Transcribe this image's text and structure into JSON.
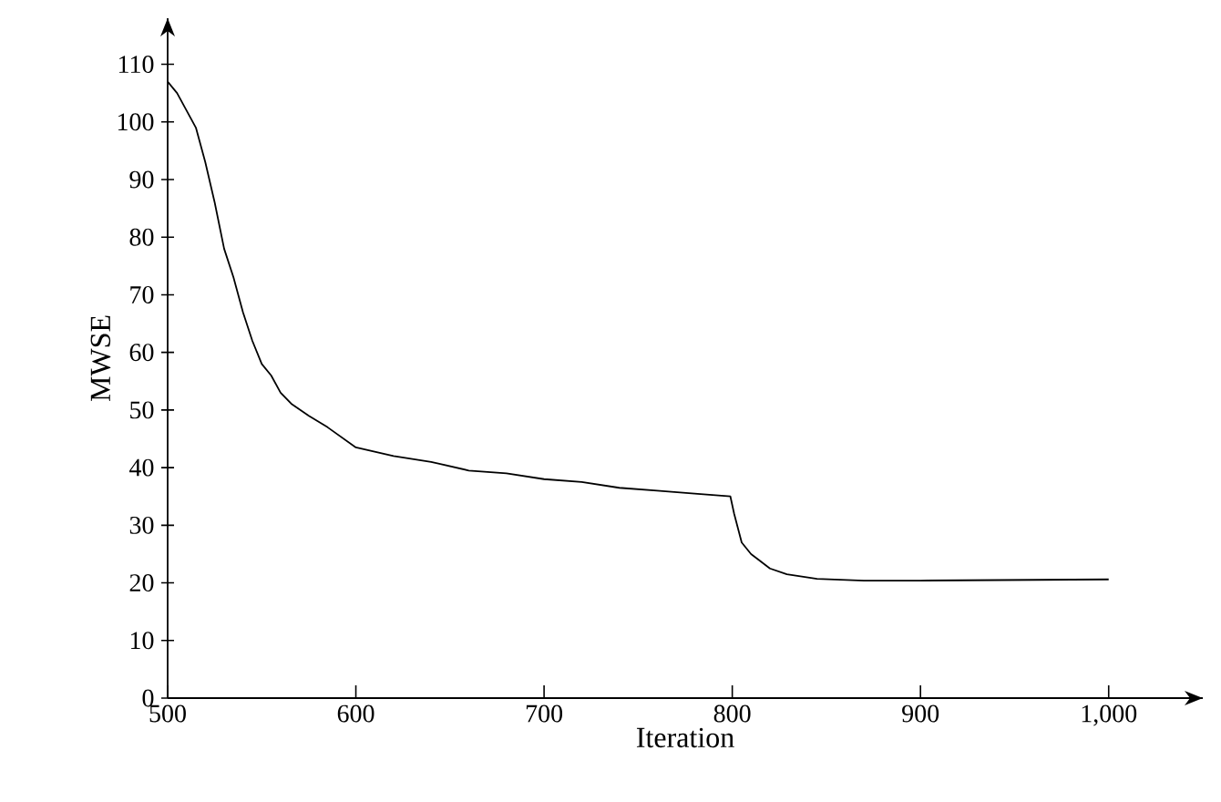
{
  "chart_data": {
    "type": "line",
    "xlabel": "Iteration",
    "ylabel": "MWSE",
    "xlim": [
      500,
      1050
    ],
    "ylim": [
      0,
      118
    ],
    "xticks": [
      500,
      600,
      700,
      800,
      900,
      {
        "value": 1000,
        "label": "1,000"
      }
    ],
    "yticks": [
      0,
      10,
      20,
      30,
      40,
      50,
      60,
      70,
      80,
      90,
      100,
      110
    ],
    "grid": false,
    "marker": "none",
    "line_style": "solid",
    "series": [
      {
        "color": "#000000",
        "x": [
          500,
          505,
          510,
          515,
          520,
          525,
          530,
          535,
          540,
          545,
          550,
          555,
          560,
          566,
          575,
          585,
          600,
          620,
          640,
          660,
          680,
          700,
          720,
          740,
          760,
          780,
          799,
          801,
          805,
          810,
          814,
          820,
          829,
          845,
          870,
          900,
          950,
          1000
        ],
        "values": [
          107,
          105,
          102,
          99,
          93,
          86,
          78,
          73,
          67,
          62,
          58,
          56,
          53,
          51,
          49,
          47,
          43.5,
          42,
          41,
          39.5,
          39,
          38,
          37.5,
          36.5,
          36,
          35.5,
          35,
          32,
          27,
          25,
          24,
          22.5,
          21.5,
          20.7,
          20.4,
          20.4,
          20.5,
          20.6
        ]
      }
    ]
  }
}
